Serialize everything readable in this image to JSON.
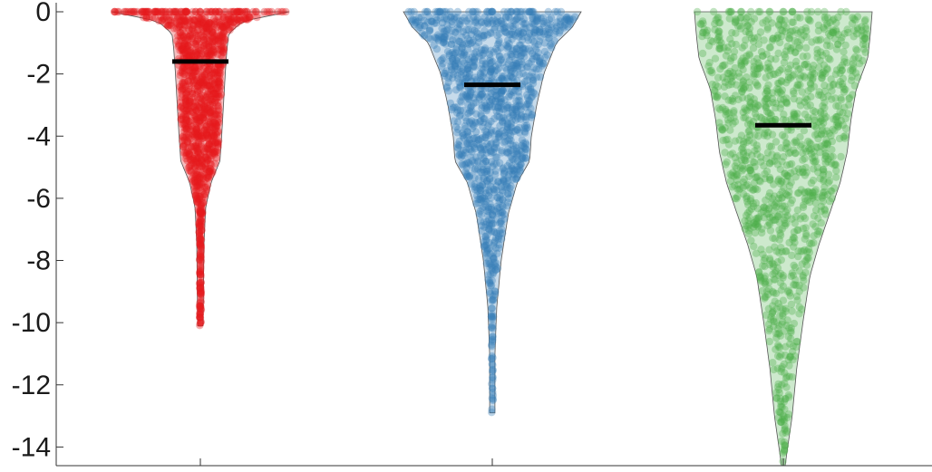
{
  "chart_data": {
    "type": "violin-swarm",
    "title": "",
    "xlabel": "",
    "ylabel": "",
    "ylim": [
      -14.6,
      0
    ],
    "y_ticks": [
      "0",
      "-2",
      "-4",
      "-6",
      "-8",
      "-10",
      "-12",
      "-14"
    ],
    "y_tick_values": [
      0,
      -2,
      -4,
      -6,
      -8,
      -10,
      -12,
      -14
    ],
    "grid": false,
    "series": [
      {
        "color": "#e41a1c",
        "min": -10.1,
        "max": 0,
        "mean": -1.6,
        "density_profile": [
          [
            0,
            1.0
          ],
          [
            -0.3,
            0.48
          ],
          [
            -0.7,
            0.32
          ],
          [
            -1.2,
            0.3
          ],
          [
            -2,
            0.28
          ],
          [
            -3,
            0.26
          ],
          [
            -4,
            0.24
          ],
          [
            -4.8,
            0.22
          ],
          [
            -5.5,
            0.12
          ],
          [
            -6.3,
            0.06
          ],
          [
            -7.5,
            0.04
          ],
          [
            -9,
            0.035
          ],
          [
            -10.1,
            0.03
          ]
        ]
      },
      {
        "color": "#377eb8",
        "min": -12.9,
        "max": 0,
        "mean": -2.35,
        "density_profile": [
          [
            0,
            1.0
          ],
          [
            -0.5,
            0.9
          ],
          [
            -1,
            0.72
          ],
          [
            -2,
            0.58
          ],
          [
            -3,
            0.5
          ],
          [
            -4,
            0.44
          ],
          [
            -4.8,
            0.42
          ],
          [
            -5.5,
            0.28
          ],
          [
            -6.5,
            0.18
          ],
          [
            -8,
            0.1
          ],
          [
            -9.5,
            0.05
          ],
          [
            -11,
            0.03
          ],
          [
            -12.9,
            0.03
          ]
        ]
      },
      {
        "color": "#4daf4a",
        "min": -14.6,
        "max": 0,
        "mean": -3.65,
        "density_profile": [
          [
            0,
            1.0
          ],
          [
            -0.7,
            0.98
          ],
          [
            -1.5,
            0.95
          ],
          [
            -2.5,
            0.82
          ],
          [
            -3.5,
            0.76
          ],
          [
            -4.5,
            0.72
          ],
          [
            -5.5,
            0.64
          ],
          [
            -6.5,
            0.52
          ],
          [
            -7.5,
            0.4
          ],
          [
            -8.5,
            0.3
          ],
          [
            -10,
            0.22
          ],
          [
            -11.5,
            0.15
          ],
          [
            -13,
            0.1
          ],
          [
            -14,
            0.05
          ],
          [
            -14.6,
            0.02
          ]
        ]
      }
    ]
  }
}
